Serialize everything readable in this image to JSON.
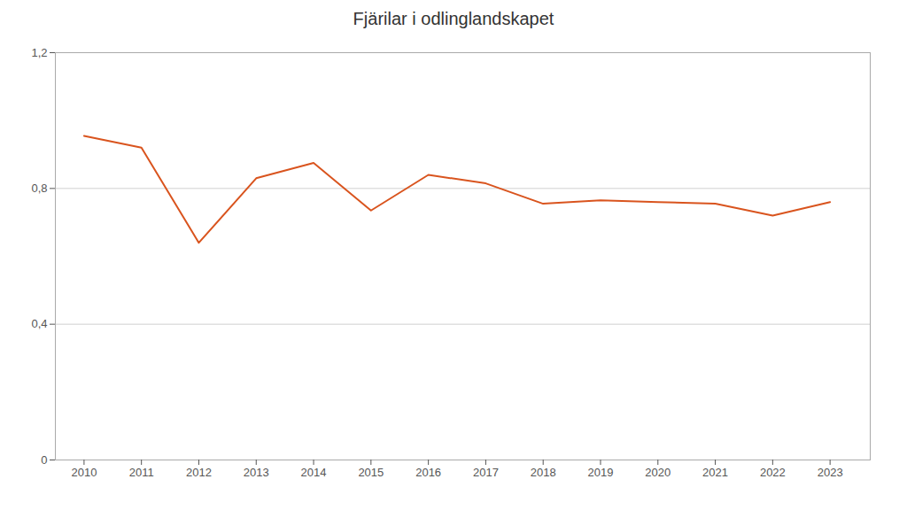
{
  "chart_data": {
    "type": "line",
    "title": "Fjärilar i odlinglandskapet",
    "x": [
      2010,
      2011,
      2012,
      2013,
      2014,
      2015,
      2016,
      2017,
      2018,
      2019,
      2020,
      2021,
      2022,
      2023
    ],
    "values": [
      0.955,
      0.92,
      0.64,
      0.83,
      0.875,
      0.735,
      0.84,
      0.815,
      0.755,
      0.765,
      0.76,
      0.755,
      0.72,
      0.76
    ],
    "color": "#D9541E",
    "xlim": [
      2009.5,
      2023.7
    ],
    "xticks": [
      2010,
      2011,
      2012,
      2013,
      2014,
      2015,
      2016,
      2017,
      2018,
      2019,
      2020,
      2021,
      2022,
      2023
    ],
    "ylim": [
      0,
      1.2
    ],
    "yticks": [
      0,
      {
        "value": 0.4,
        "label": "0,4"
      },
      {
        "value": 0.8,
        "label": "0,8"
      },
      {
        "value": 1.2,
        "label": "1,2"
      }
    ],
    "grid": true
  }
}
